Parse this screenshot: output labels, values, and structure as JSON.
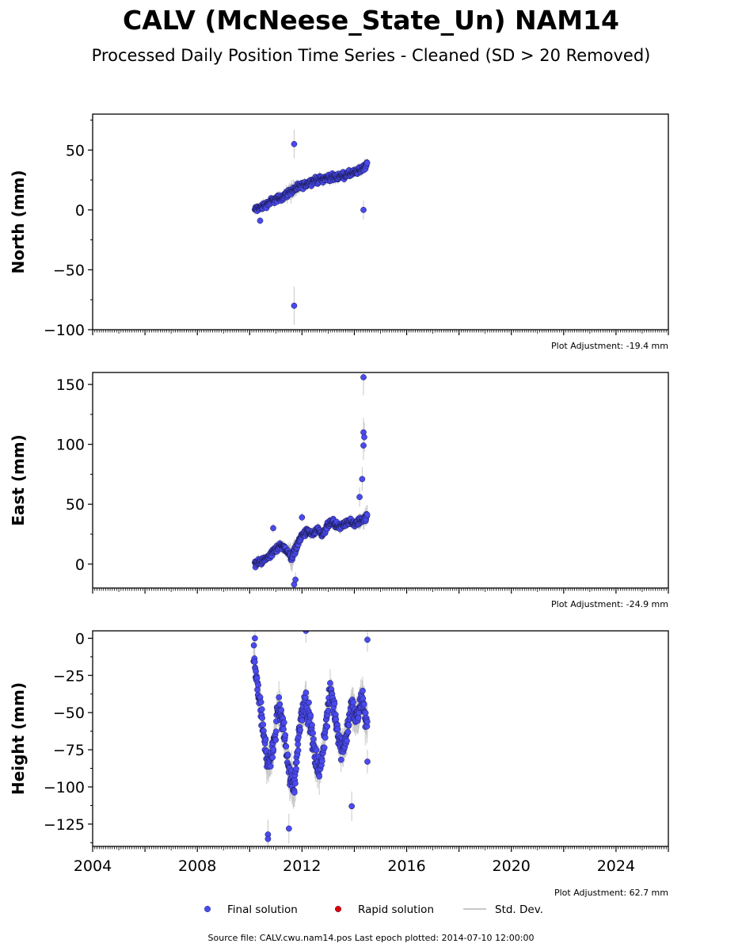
{
  "title": "CALV (McNeese_State_Un) NAM14",
  "subtitle": "Processed Daily Position Time Series - Cleaned (SD > 20 Removed)",
  "source_note": "Source file: CALV.cwu.nam14.pos  Last epoch plotted: 2014-07-10 12:00:00",
  "colors": {
    "final": "#4a4af0",
    "rapid": "#e00000",
    "stddev": "#c8c8c8",
    "axis": "#000000"
  },
  "legend": [
    {
      "label": "Final solution",
      "color": "#4a4af0",
      "kind": "dot"
    },
    {
      "label": "Rapid solution",
      "color": "#e00000",
      "kind": "dot"
    },
    {
      "label": "Std. Dev.",
      "color": "#c8c8c8",
      "kind": "line"
    }
  ],
  "chart_data": [
    {
      "type": "scatter",
      "ylabel": "North (mm)",
      "adjustment_text": "Plot Adjustment: -19.4 mm",
      "xlim": [
        2004,
        2026
      ],
      "ylim": [
        -100,
        80
      ],
      "yticks": [
        -100,
        -50,
        0,
        50
      ],
      "ytick_labels": [
        "−100",
        "−50",
        "0",
        "50"
      ],
      "xtick_labels_shown": false,
      "series": [
        {
          "x": [
            2010.2,
            2010.4,
            2010.6,
            2010.8,
            2011.0,
            2011.2,
            2011.4,
            2011.6,
            2011.8,
            2012.0,
            2012.2,
            2012.4,
            2012.6,
            2012.8,
            2013.0,
            2013.2,
            2013.4,
            2013.6,
            2013.8,
            2014.0,
            2014.2,
            2014.4,
            2014.5
          ],
          "y": [
            0,
            2,
            4,
            7,
            9,
            10,
            13,
            16,
            18,
            20,
            22,
            24,
            25,
            26,
            27,
            27,
            28,
            29,
            30,
            31,
            33,
            36,
            40
          ],
          "err": [
            3,
            3,
            3,
            3,
            3,
            3,
            4,
            6,
            4,
            3,
            3,
            3,
            3,
            3,
            3,
            3,
            3,
            3,
            3,
            3,
            3,
            4,
            4
          ]
        }
      ],
      "outliers": [
        {
          "x": 2011.7,
          "y": 55,
          "err": 12
        },
        {
          "x": 2011.7,
          "y": -80,
          "err": 16
        },
        {
          "x": 2014.35,
          "y": 0,
          "err": 8
        },
        {
          "x": 2010.4,
          "y": -9,
          "err": 3
        }
      ]
    },
    {
      "type": "scatter",
      "ylabel": "East (mm)",
      "adjustment_text": "Plot Adjustment: -24.9 mm",
      "xlim": [
        2004,
        2026
      ],
      "ylim": [
        -20,
        160
      ],
      "yticks": [
        0,
        50,
        100,
        150
      ],
      "ytick_labels": [
        "0",
        "50",
        "100",
        "150"
      ],
      "xtick_labels_shown": false,
      "series": [
        {
          "x": [
            2010.2,
            2010.4,
            2010.6,
            2010.8,
            2011.0,
            2011.2,
            2011.4,
            2011.6,
            2011.8,
            2012.0,
            2012.2,
            2012.4,
            2012.6,
            2012.8,
            2013.0,
            2013.2,
            2013.4,
            2013.6,
            2013.8,
            2014.0,
            2014.2,
            2014.4,
            2014.5
          ],
          "y": [
            0,
            2,
            4,
            8,
            12,
            16,
            12,
            5,
            15,
            24,
            27,
            25,
            28,
            24,
            33,
            35,
            30,
            33,
            36,
            33,
            36,
            38,
            40
          ],
          "err": [
            3,
            3,
            3,
            3,
            3,
            3,
            4,
            8,
            5,
            3,
            3,
            3,
            3,
            3,
            3,
            3,
            3,
            3,
            3,
            3,
            4,
            6,
            6
          ]
        }
      ],
      "outliers": [
        {
          "x": 2014.35,
          "y": 156,
          "err": 15
        },
        {
          "x": 2014.35,
          "y": 110,
          "err": 12
        },
        {
          "x": 2014.38,
          "y": 106,
          "err": 12
        },
        {
          "x": 2014.35,
          "y": 99,
          "err": 12
        },
        {
          "x": 2014.3,
          "y": 71,
          "err": 10
        },
        {
          "x": 2014.2,
          "y": 56,
          "err": 8
        },
        {
          "x": 2011.7,
          "y": -17,
          "err": 6
        },
        {
          "x": 2011.75,
          "y": -13,
          "err": 6
        },
        {
          "x": 2010.9,
          "y": 30,
          "err": 4
        },
        {
          "x": 2012.0,
          "y": 39,
          "err": 4
        }
      ]
    },
    {
      "type": "scatter",
      "ylabel": "Height (mm)",
      "adjustment_text": "Plot Adjustment: 62.7 mm",
      "xlim": [
        2004,
        2026
      ],
      "ylim": [
        -140,
        5
      ],
      "yticks": [
        -125,
        -100,
        -75,
        -50,
        -25,
        0
      ],
      "ytick_labels": [
        "−125",
        "−100",
        "−75",
        "−50",
        "−25",
        "0"
      ],
      "xtick_labels_shown": true,
      "xticks": [
        2004,
        2008,
        2012,
        2016,
        2020,
        2024
      ],
      "xtick_labels": [
        "2004",
        "2008",
        "2012",
        "2016",
        "2020",
        "2024"
      ],
      "series": [
        {
          "x": [
            2010.15,
            2010.3,
            2010.5,
            2010.7,
            2010.9,
            2011.1,
            2011.3,
            2011.5,
            2011.7,
            2011.9,
            2012.1,
            2012.3,
            2012.5,
            2012.7,
            2012.9,
            2013.1,
            2013.3,
            2013.5,
            2013.7,
            2013.9,
            2014.1,
            2014.3,
            2014.5
          ],
          "y": [
            -10,
            -30,
            -60,
            -85,
            -75,
            -45,
            -60,
            -90,
            -100,
            -60,
            -40,
            -55,
            -80,
            -90,
            -60,
            -35,
            -55,
            -75,
            -65,
            -45,
            -55,
            -40,
            -60
          ],
          "err": [
            8,
            8,
            8,
            9,
            8,
            8,
            9,
            10,
            10,
            9,
            8,
            8,
            9,
            9,
            8,
            8,
            9,
            9,
            9,
            8,
            9,
            10,
            10
          ]
        }
      ],
      "outliers": [
        {
          "x": 2010.2,
          "y": 0,
          "err": 6
        },
        {
          "x": 2010.7,
          "y": -132,
          "err": 10
        },
        {
          "x": 2010.7,
          "y": -135,
          "err": 10
        },
        {
          "x": 2011.5,
          "y": -128,
          "err": 10
        },
        {
          "x": 2012.15,
          "y": 5,
          "err": 8
        },
        {
          "x": 2013.9,
          "y": -113,
          "err": 10
        },
        {
          "x": 2014.5,
          "y": -1,
          "err": 8
        },
        {
          "x": 2014.5,
          "y": -83,
          "err": 8
        }
      ]
    }
  ]
}
